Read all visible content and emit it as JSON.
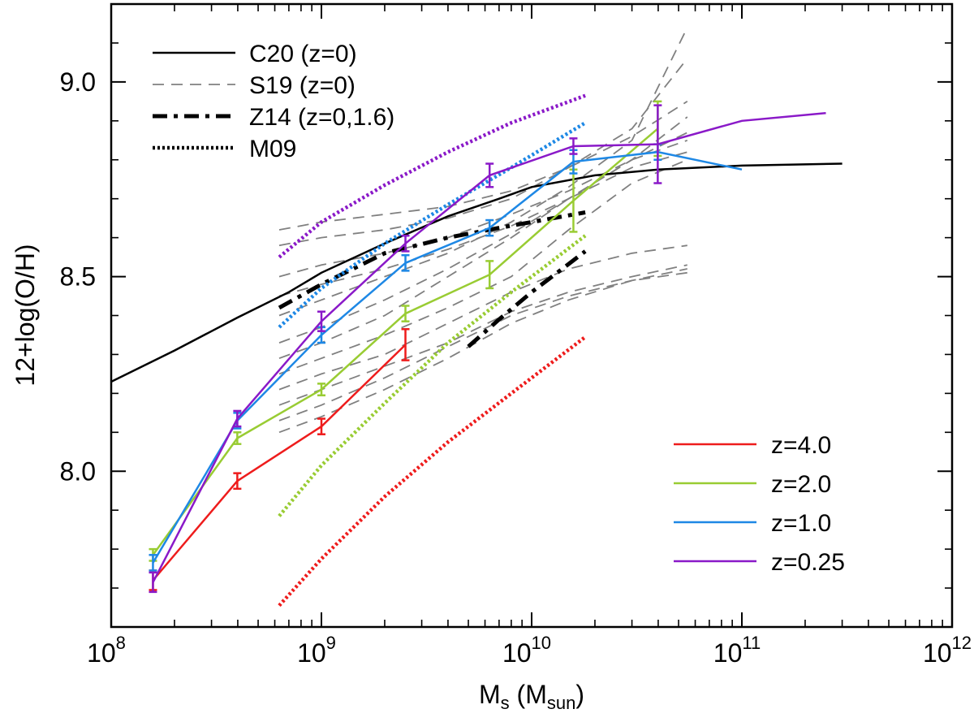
{
  "chart_data": {
    "type": "line",
    "xlabel": "Ms (Msun)",
    "xlabel_parts": {
      "main": "M",
      "sub": "s",
      "open": " (M",
      "sub2": "sun",
      "close": ")"
    },
    "ylabel": "12+log(O/H)",
    "xscale": "log",
    "xlim": [
      100000000,
      1000000000000
    ],
    "ylim": [
      7.6,
      9.2
    ],
    "x_ticks": [
      {
        "exp": 8,
        "base": "10",
        "sup": "8"
      },
      {
        "exp": 9,
        "base": "10",
        "sup": "9"
      },
      {
        "exp": 10,
        "base": "10",
        "sup": "10"
      },
      {
        "exp": 11,
        "base": "10",
        "sup": "11"
      },
      {
        "exp": 12,
        "base": "10",
        "sup": "12"
      }
    ],
    "y_ticks": [
      {
        "value": 8.0,
        "label": "8.0"
      },
      {
        "value": 8.5,
        "label": "8.5"
      },
      {
        "value": 9.0,
        "label": "9.0"
      }
    ],
    "legend_reference": {
      "placement": "top-left",
      "entries": [
        {
          "label": "C20 (z=0)",
          "style": "solid",
          "color": "#000000"
        },
        {
          "label": "S19 (z=0)",
          "style": "dashed",
          "color": "#808080"
        },
        {
          "label": "Z14 (z=0,1.6)",
          "style": "dashdot",
          "color": "#000000"
        },
        {
          "label": "M09",
          "style": "dotted",
          "color": "#000000"
        }
      ]
    },
    "legend_redshift": {
      "placement": "bottom-right",
      "entries": [
        {
          "label": "z=4.0",
          "color": "#ee1c1c"
        },
        {
          "label": "z=2.0",
          "color": "#99cc33"
        },
        {
          "label": "z=1.0",
          "color": "#1e88e5"
        },
        {
          "label": "z=0.25",
          "color": "#8a19c8"
        }
      ]
    },
    "series": [
      {
        "name": "z=4.0",
        "color": "#ee1c1c",
        "x": [
          158000000,
          398000000,
          1000000000,
          2510000000
        ],
        "y": [
          7.72,
          7.975,
          8.115,
          8.325
        ],
        "err": [
          0.025,
          0.02,
          0.02,
          0.04
        ]
      },
      {
        "name": "z=2.0",
        "color": "#99cc33",
        "x": [
          158000000,
          398000000,
          1000000000,
          2510000000,
          6310000000,
          15800000000,
          39800000000
        ],
        "y": [
          7.785,
          8.085,
          8.21,
          8.405,
          8.505,
          8.695,
          8.88
        ],
        "err": [
          0.015,
          0.015,
          0.015,
          0.02,
          0.035,
          0.08,
          0.07
        ]
      },
      {
        "name": "z=1.0",
        "color": "#1e88e5",
        "x": [
          158000000,
          398000000,
          1000000000,
          2510000000,
          6310000000,
          15800000000,
          39800000000,
          100000000000
        ],
        "y": [
          7.765,
          8.13,
          8.35,
          8.535,
          8.625,
          8.795,
          8.82,
          8.775
        ],
        "err": [
          0.02,
          0.02,
          0.02,
          0.02,
          0.02,
          0.03,
          0.02,
          0
        ]
      },
      {
        "name": "z=0.25",
        "color": "#8a19c8",
        "x": [
          158000000,
          398000000,
          1000000000,
          2510000000,
          6310000000,
          15800000000,
          39800000000,
          100000000000,
          251000000000
        ],
        "y": [
          7.715,
          8.135,
          8.385,
          8.585,
          8.76,
          8.835,
          8.84,
          8.9,
          8.92
        ],
        "err": [
          0.025,
          0.02,
          0.025,
          0.02,
          0.03,
          0.02,
          0.1,
          0,
          0
        ]
      }
    ],
    "reference_curves": [
      {
        "name": "C20 (z=0)",
        "style": "solid",
        "color": "#000000",
        "x": [
          100000000,
          200000000,
          400000000,
          700000000,
          1000000000,
          2000000000,
          4000000000,
          7000000000,
          10000000000,
          20000000000,
          40000000000,
          100000000000,
          300000000000
        ],
        "y": [
          8.23,
          8.31,
          8.395,
          8.46,
          8.51,
          8.585,
          8.655,
          8.7,
          8.73,
          8.76,
          8.775,
          8.785,
          8.79
        ]
      },
      {
        "name": "Z14 (z=0,1.6)",
        "style": "dashdot",
        "color": "#000000",
        "x": [
          630000000,
          1000000000,
          2000000000,
          4000000000,
          7000000000,
          10000000000,
          18000000000
        ],
        "y": [
          8.42,
          8.48,
          8.56,
          8.6,
          8.625,
          8.64,
          8.665
        ]
      },
      {
        "name": "Z14 (z=0,1.6)",
        "style": "dashdot",
        "color": "#000000",
        "x": [
          5000000000,
          7000000000,
          10000000000,
          14000000000,
          18000000000
        ],
        "y": [
          8.32,
          8.39,
          8.46,
          8.52,
          8.565
        ]
      },
      {
        "name": "M09",
        "style": "dotted",
        "color": "#8a19c8",
        "x": [
          630000000,
          1000000000,
          2000000000,
          4000000000,
          8000000000,
          18000000000
        ],
        "y": [
          8.55,
          8.64,
          8.735,
          8.82,
          8.895,
          8.965
        ]
      },
      {
        "name": "M09",
        "style": "dotted",
        "color": "#1e88e5",
        "x": [
          630000000,
          1000000000,
          2000000000,
          4000000000,
          8000000000,
          18000000000
        ],
        "y": [
          8.37,
          8.47,
          8.585,
          8.685,
          8.78,
          8.895
        ]
      },
      {
        "name": "M09",
        "style": "dotted",
        "color": "#99cc33",
        "x": [
          630000000,
          1000000000,
          2000000000,
          4000000000,
          8000000000,
          18000000000
        ],
        "y": [
          7.885,
          8.015,
          8.175,
          8.33,
          8.46,
          8.605
        ]
      },
      {
        "name": "M09",
        "style": "dotted",
        "color": "#ee1c1c",
        "x": [
          630000000,
          1000000000,
          2000000000,
          4000000000,
          8000000000,
          18000000000
        ],
        "y": [
          7.655,
          7.775,
          7.935,
          8.075,
          8.2,
          8.345
        ]
      }
    ],
    "s19_curves": [
      {
        "x": [
          630000000,
          1000000000,
          2000000000,
          4000000000,
          8000000000,
          15000000000,
          30000000000,
          55000000000
        ],
        "y": [
          8.62,
          8.64,
          8.66,
          8.68,
          8.72,
          8.78,
          8.86,
          8.95
        ]
      },
      {
        "x": [
          630000000,
          1000000000,
          2000000000,
          4000000000,
          8000000000,
          15000000000,
          30000000000,
          55000000000
        ],
        "y": [
          8.58,
          8.6,
          8.62,
          8.65,
          8.7,
          8.78,
          8.88,
          9.06
        ]
      },
      {
        "x": [
          630000000,
          1000000000,
          2000000000,
          4000000000,
          8000000000,
          15000000000,
          30000000000,
          55000000000
        ],
        "y": [
          8.5,
          8.53,
          8.56,
          8.6,
          8.66,
          8.72,
          8.8,
          8.85
        ]
      },
      {
        "x": [
          630000000,
          1000000000,
          2000000000,
          4000000000,
          8000000000,
          15000000000,
          30000000000,
          55000000000
        ],
        "y": [
          8.45,
          8.48,
          8.52,
          8.57,
          8.63,
          8.7,
          8.8,
          8.91
        ]
      },
      {
        "x": [
          630000000,
          1000000000,
          2000000000,
          4000000000,
          8000000000,
          15000000000,
          30000000000,
          55000000000
        ],
        "y": [
          8.4,
          8.44,
          8.5,
          8.56,
          8.64,
          8.73,
          8.85,
          9.14
        ]
      },
      {
        "x": [
          630000000,
          1000000000,
          2000000000,
          4000000000,
          8000000000,
          15000000000,
          30000000000,
          55000000000
        ],
        "y": [
          8.33,
          8.37,
          8.44,
          8.52,
          8.61,
          8.7,
          8.8,
          8.87
        ]
      },
      {
        "x": [
          630000000,
          1000000000,
          2000000000,
          4000000000,
          8000000000,
          15000000000,
          30000000000,
          55000000000
        ],
        "y": [
          8.29,
          8.33,
          8.4,
          8.5,
          8.6,
          8.7,
          8.78,
          8.82
        ]
      },
      {
        "x": [
          630000000,
          1000000000,
          2000000000,
          4000000000,
          8000000000,
          15000000000,
          30000000000,
          55000000000
        ],
        "y": [
          8.25,
          8.29,
          8.35,
          8.42,
          8.5,
          8.62,
          8.74,
          8.8
        ]
      },
      {
        "x": [
          630000000,
          1000000000,
          2000000000,
          4000000000,
          8000000000,
          15000000000,
          30000000000,
          55000000000
        ],
        "y": [
          8.21,
          8.25,
          8.3,
          8.38,
          8.46,
          8.52,
          8.56,
          8.58
        ]
      },
      {
        "x": [
          630000000,
          1000000000,
          2000000000,
          4000000000,
          8000000000,
          15000000000,
          30000000000,
          55000000000
        ],
        "y": [
          8.17,
          8.21,
          8.27,
          8.33,
          8.41,
          8.46,
          8.5,
          8.53
        ]
      },
      {
        "x": [
          630000000,
          1000000000,
          2000000000,
          4000000000,
          8000000000,
          15000000000,
          30000000000,
          55000000000
        ],
        "y": [
          8.13,
          8.17,
          8.24,
          8.32,
          8.4,
          8.45,
          8.49,
          8.52
        ]
      },
      {
        "x": [
          630000000,
          1000000000,
          2000000000,
          4000000000,
          8000000000,
          15000000000,
          30000000000,
          55000000000
        ],
        "y": [
          8.1,
          8.14,
          8.21,
          8.29,
          8.38,
          8.44,
          8.49,
          8.51
        ]
      }
    ]
  }
}
